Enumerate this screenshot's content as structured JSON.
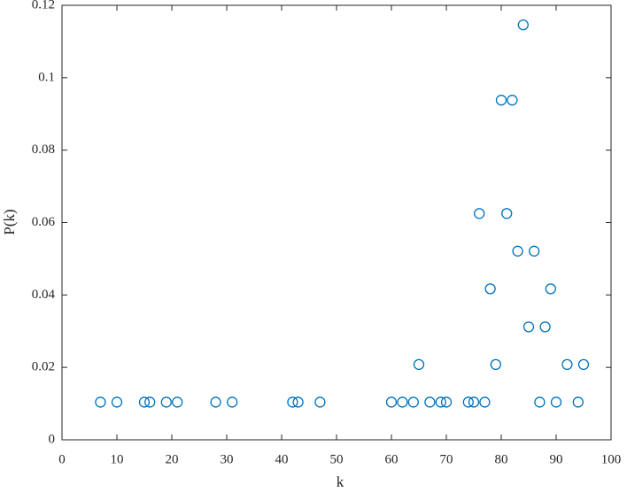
{
  "chart_data": {
    "type": "scatter",
    "x_label": "k",
    "y_label": "P(k)",
    "x": [
      7,
      10,
      15,
      16,
      19,
      21,
      28,
      31,
      42,
      43,
      47,
      60,
      62,
      64,
      65,
      67,
      69,
      70,
      74,
      75,
      76,
      77,
      78,
      79,
      80,
      81,
      82,
      83,
      84,
      85,
      86,
      87,
      88,
      89,
      90,
      92,
      94,
      95
    ],
    "values": [
      0.0104,
      0.0104,
      0.0104,
      0.0104,
      0.0104,
      0.0104,
      0.0104,
      0.0104,
      0.0104,
      0.0104,
      0.0104,
      0.0104,
      0.0104,
      0.0104,
      0.0208,
      0.0104,
      0.0104,
      0.0104,
      0.0104,
      0.0104,
      0.0625,
      0.0104,
      0.0417,
      0.0208,
      0.0938,
      0.0625,
      0.0938,
      0.0521,
      0.1146,
      0.0312,
      0.0521,
      0.0104,
      0.0312,
      0.0417,
      0.0104,
      0.0208,
      0.0104,
      0.0208
    ],
    "color": "#0072bd",
    "xlim": [
      0,
      100
    ],
    "xticks": [
      0,
      10,
      20,
      30,
      40,
      50,
      60,
      70,
      80,
      90,
      100
    ],
    "ylim": [
      0,
      0.12
    ],
    "yticks": [
      0,
      0.02,
      0.04,
      0.06,
      0.08,
      0.1,
      0.12
    ]
  }
}
